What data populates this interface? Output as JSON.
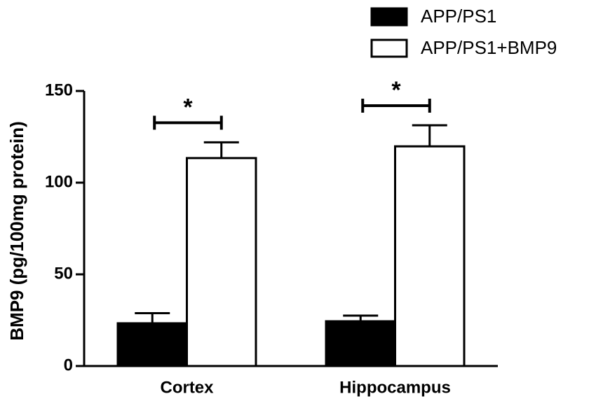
{
  "chart_data": {
    "type": "bar",
    "y_label": "BMP9 (pg/100mg protein)",
    "categories": [
      "Cortex",
      "Hippocampus"
    ],
    "series": [
      {
        "name": "APP/PS1",
        "color": "#000000",
        "values": [
          23.3,
          24.4
        ],
        "errors": [
          5.5,
          3.1
        ]
      },
      {
        "name": "APP/PS1+BMP9",
        "color": "#ffffff",
        "values": [
          113.4,
          119.8
        ],
        "errors": [
          8.6,
          11.5
        ]
      }
    ],
    "annotations": [
      "*",
      "*"
    ],
    "ylim": [
      0,
      150
    ],
    "yticks": [
      0,
      50,
      100,
      150
    ],
    "legend": "top-right"
  }
}
